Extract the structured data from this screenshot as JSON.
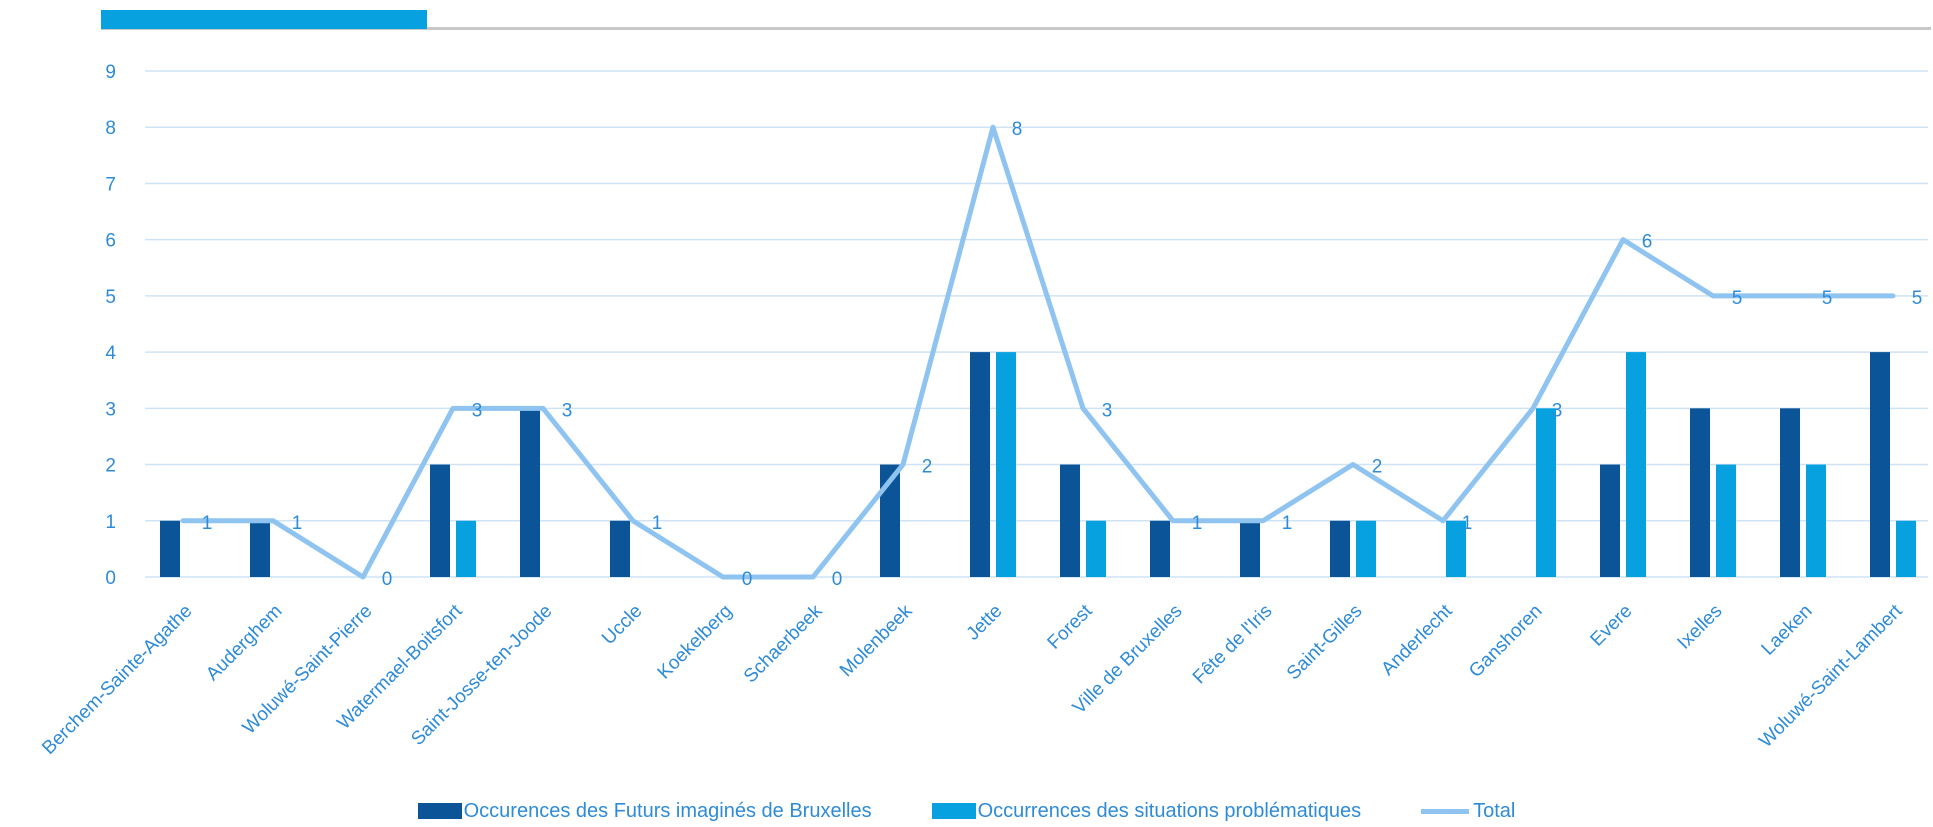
{
  "chart_data": {
    "type": "bar",
    "categories": [
      "Berchem-Sainte-Agathe",
      "Auderghem",
      "Woluwé-Saint-Pierre",
      "Watermael-Boitsfort",
      "Saint-Josse-ten-Joode",
      "Uccle",
      "Koekelberg",
      "Schaerbeek",
      "Molenbeek",
      "Jette",
      "Forest",
      "Ville de Bruxelles",
      "Fête de l'Iris",
      "Saint-Gilles",
      "Anderlecht",
      "Ganshoren",
      "Evere",
      "Ixelles",
      "Laeken",
      "Woluwé-Saint-Lambert"
    ],
    "series": [
      {
        "name": "Occurences des Futurs imaginés de Bruxelles",
        "type": "bar",
        "color": "#0b5497",
        "values": [
          1,
          1,
          0,
          2,
          3,
          1,
          0,
          0,
          2,
          4,
          2,
          1,
          1,
          1,
          0,
          0,
          2,
          3,
          3,
          4
        ]
      },
      {
        "name": "Occurrences des situations problématiques",
        "type": "bar",
        "color": "#07a1df",
        "values": [
          0,
          0,
          0,
          1,
          0,
          0,
          0,
          0,
          0,
          4,
          1,
          0,
          0,
          1,
          1,
          3,
          4,
          2,
          2,
          1
        ]
      },
      {
        "name": "Total",
        "type": "line",
        "color": "#8fc3f0",
        "values": [
          1,
          1,
          0,
          3,
          3,
          1,
          0,
          0,
          2,
          8,
          3,
          1,
          1,
          2,
          1,
          3,
          6,
          5,
          5,
          5
        ]
      }
    ],
    "ylim": [
      0,
      9
    ],
    "yticks": [
      "0",
      "1",
      "2",
      "3",
      "4",
      "5",
      "6",
      "7",
      "8",
      "9"
    ],
    "grid": true,
    "legend_position": "bottom",
    "data_labels": "total line only",
    "header_accent_color": "#07a1df",
    "header_rule_color": "#c8c8c8",
    "grid_color": "#cfe3f5",
    "text_color": "#2e8bd8"
  }
}
